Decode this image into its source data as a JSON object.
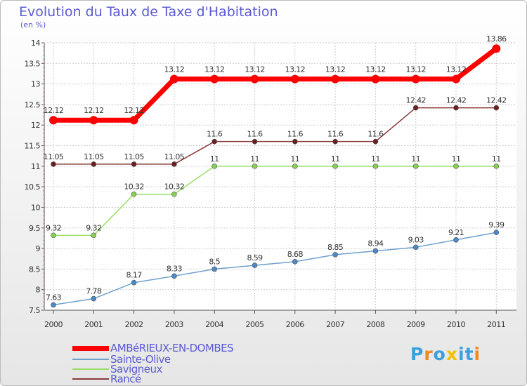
{
  "header": {
    "title": "Evolution du Taux de Taxe d'Habitation",
    "subtitle": "(en %)"
  },
  "chart_data": {
    "type": "line",
    "title": "Evolution du Taux de Taxe d'Habitation",
    "ylabel": "(en %)",
    "xlabel": "",
    "categories": [
      "2000",
      "2001",
      "2002",
      "2003",
      "2004",
      "2005",
      "2006",
      "2007",
      "2008",
      "2009",
      "2010",
      "2011"
    ],
    "ylim": [
      7.5,
      14
    ],
    "yticks": [
      "7.5",
      "8",
      "8.5",
      "9",
      "9.5",
      "10",
      "10.5",
      "11",
      "11.5",
      "12",
      "12.5",
      "13",
      "13.5",
      "14"
    ],
    "grid": true,
    "series": [
      {
        "name": "AMBéRIEUX-EN-DOMBES",
        "color": "#ff0000",
        "point_color": "#ff0000",
        "width": 7,
        "radius": 6,
        "values": [
          12.12,
          12.12,
          12.12,
          13.12,
          13.12,
          13.12,
          13.12,
          13.12,
          13.12,
          13.12,
          13.12,
          13.86
        ],
        "labels": [
          "12.12",
          "12.12",
          "12.12",
          "13.12",
          "13.12",
          "13.12",
          "13.12",
          "13.12",
          "13.12",
          "13.12",
          "13.12",
          "13.86"
        ]
      },
      {
        "name": "Sainte-Olive",
        "color": "#6fa0cd",
        "point_color": "#4a8ac8",
        "width": 1.5,
        "radius": 3.5,
        "values": [
          7.63,
          7.78,
          8.17,
          8.33,
          8.5,
          8.59,
          8.68,
          8.85,
          8.94,
          9.03,
          9.21,
          9.39
        ],
        "labels": [
          "7.63",
          "7.78",
          "8.17",
          "8.33",
          "8.5",
          "8.59",
          "8.68",
          "8.85",
          "8.94",
          "9.03",
          "9.21",
          "9.39"
        ]
      },
      {
        "name": "Savigneux",
        "color": "#99dd66",
        "point_color": "#88d055",
        "width": 1.5,
        "radius": 3.5,
        "values": [
          9.32,
          9.32,
          10.32,
          10.32,
          11,
          11,
          11,
          11,
          11,
          11,
          11,
          11
        ],
        "labels": [
          "9.32",
          "9.32",
          "10.32",
          "10.32",
          "11",
          "11",
          "11",
          "11",
          "11",
          "11",
          "11",
          "11"
        ]
      },
      {
        "name": "Rancé",
        "color": "#8b3a3a",
        "point_color": "#6b1f1f",
        "width": 1.5,
        "radius": 3.5,
        "values": [
          11.05,
          11.05,
          11.05,
          11.05,
          11.6,
          11.6,
          11.6,
          11.6,
          11.6,
          12.42,
          12.42,
          12.42
        ],
        "labels": [
          "11.05",
          "11.05",
          "11.05",
          "11.05",
          "11.6",
          "11.6",
          "11.6",
          "11.6",
          "11.6",
          "12.42",
          "12.42",
          "12.42"
        ]
      }
    ]
  },
  "legend": {
    "items": [
      {
        "label": "AMBéRIEUX-EN-DOMBES",
        "color": "#ff0000"
      },
      {
        "label": "Sainte-Olive",
        "color": "#6fa0cd"
      },
      {
        "label": "Savigneux",
        "color": "#99dd66"
      },
      {
        "label": "Rancé",
        "color": "#8b3a3a"
      }
    ]
  },
  "logo": {
    "text": "Proxiti",
    "letters": [
      "P",
      "r",
      "o",
      "x",
      "i",
      "t",
      "i"
    ],
    "colors": [
      "#3aa0dd",
      "#f08a1c",
      "#3aa0dd",
      "#f2c200",
      "#3aa0dd",
      "#3aa0dd",
      "#f08a1c"
    ]
  }
}
